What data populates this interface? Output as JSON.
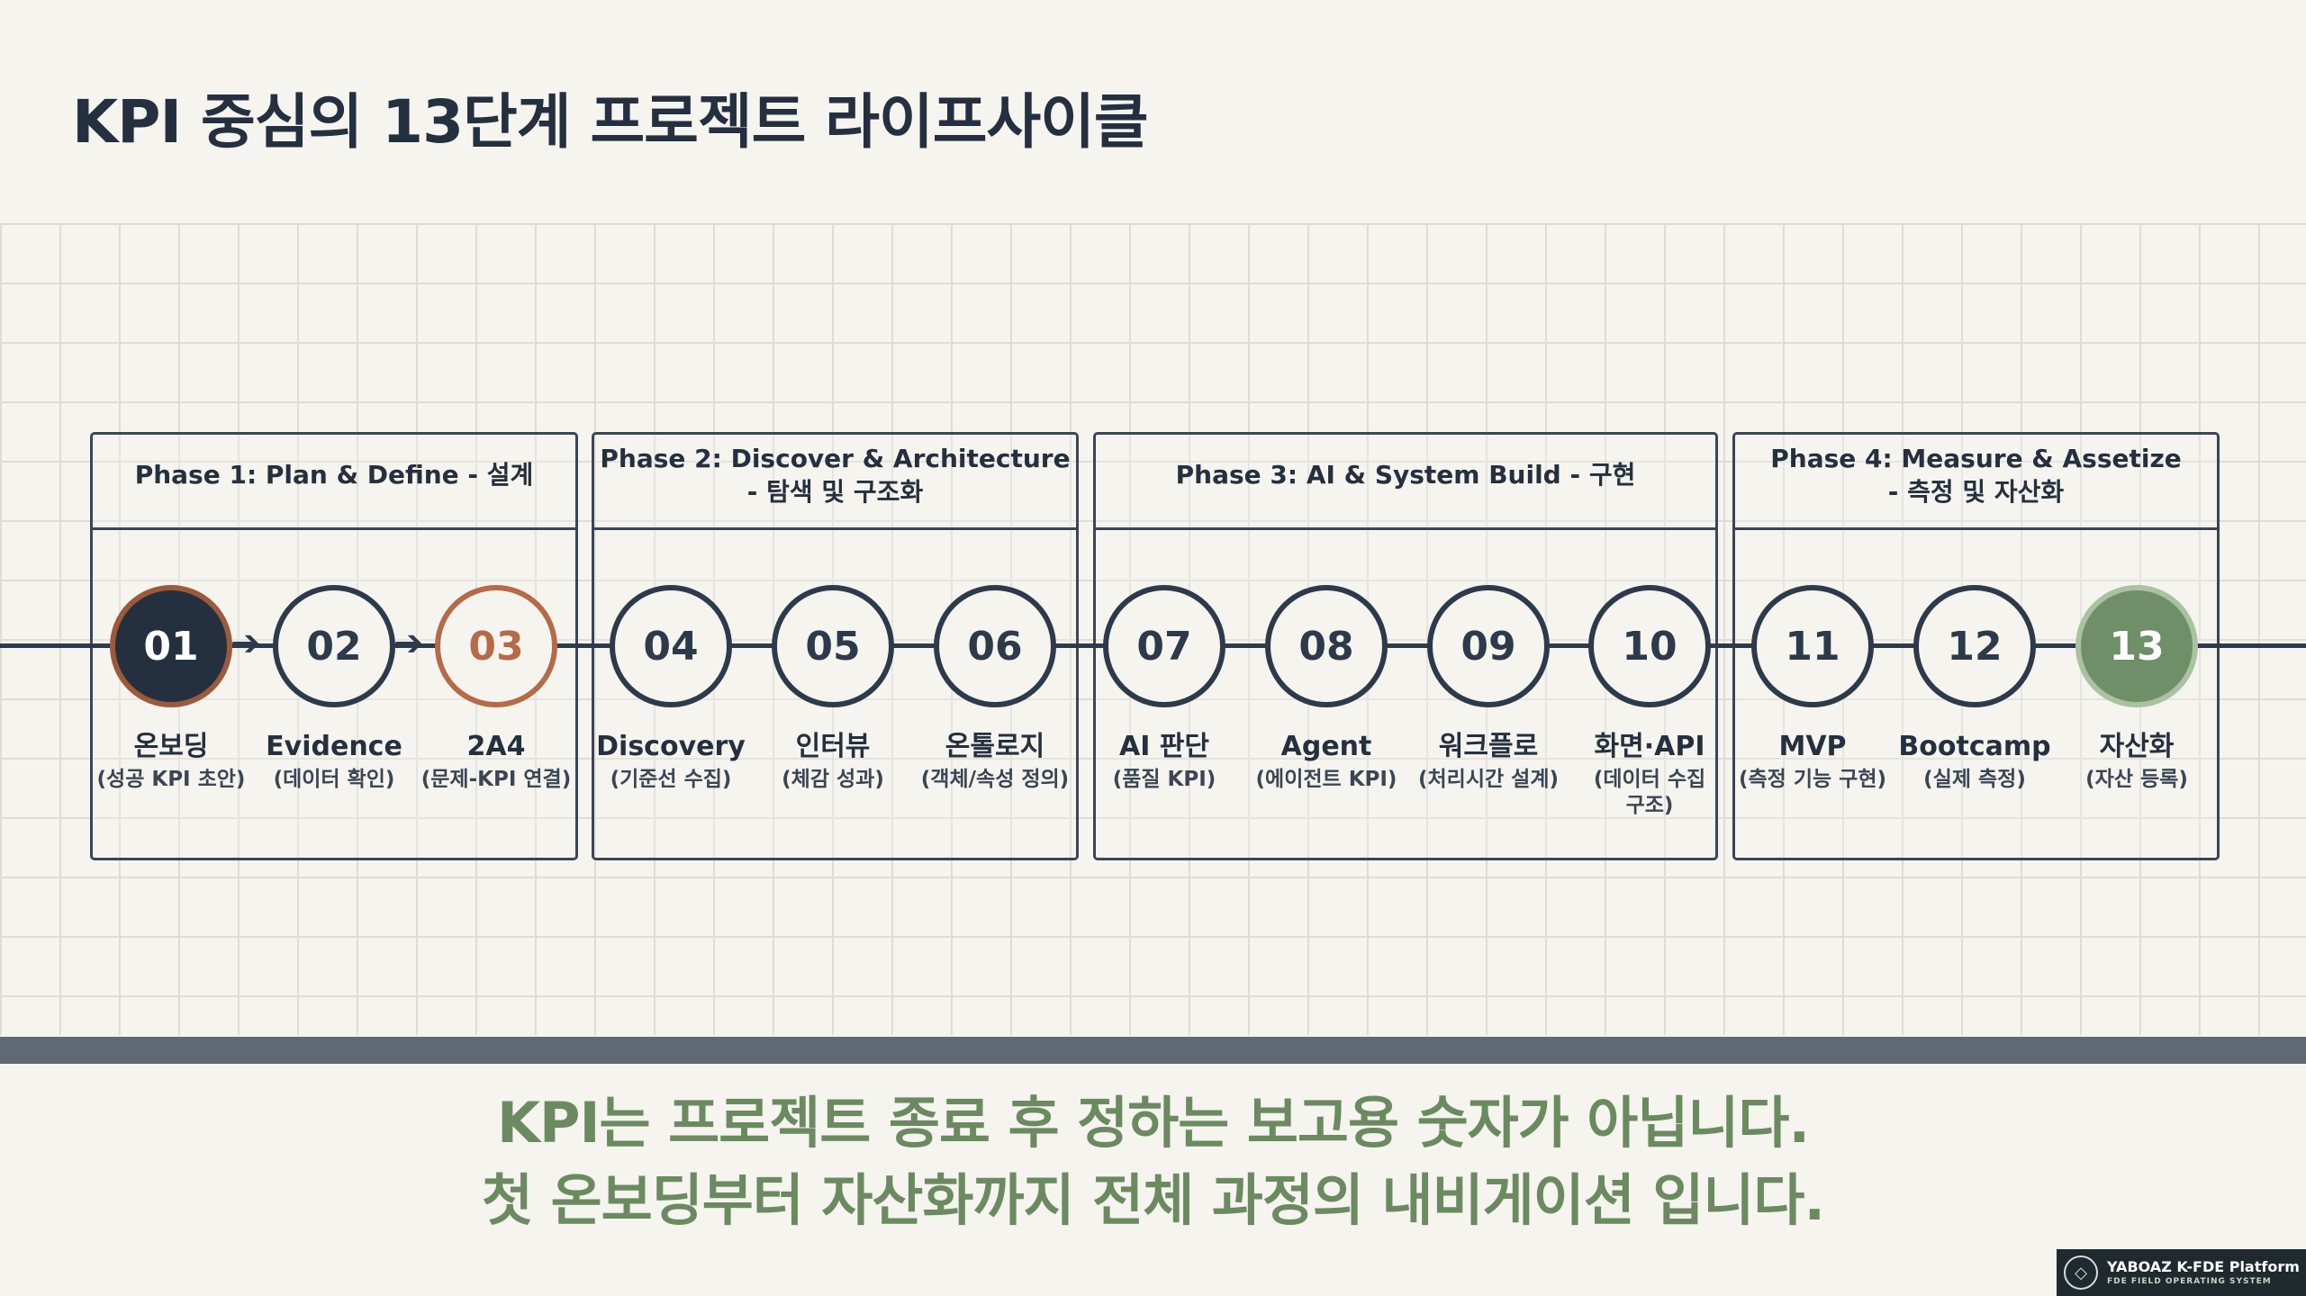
{
  "title": "KPI 중심의 13단계 프로젝트 라이프사이클",
  "phases": [
    {
      "label": "Phase 1: Plan & Define - 설계"
    },
    {
      "label": "Phase 2: Discover & Architecture\n- 탐색 및 구조화"
    },
    {
      "label": "Phase 3: AI & System Build - 구현"
    },
    {
      "label": "Phase 4: Measure & Assetize\n- 측정 및 자산화"
    }
  ],
  "steps": [
    {
      "num": "01",
      "name": "온보딩",
      "desc": "(성공 KPI 초안)"
    },
    {
      "num": "02",
      "name": "Evidence",
      "desc": "(데이터 확인)"
    },
    {
      "num": "03",
      "name": "2A4",
      "desc": "(문제-KPI 연결)"
    },
    {
      "num": "04",
      "name": "Discovery",
      "desc": "(기준선 수집)"
    },
    {
      "num": "05",
      "name": "인터뷰",
      "desc": "(체감 성과)"
    },
    {
      "num": "06",
      "name": "온톨로지",
      "desc": "(객체/속성 정의)"
    },
    {
      "num": "07",
      "name": "AI 판단",
      "desc": "(품질 KPI)"
    },
    {
      "num": "08",
      "name": "Agent",
      "desc": "(에이전트 KPI)"
    },
    {
      "num": "09",
      "name": "워크플로",
      "desc": "(처리시간 설계)"
    },
    {
      "num": "10",
      "name": "화면·API",
      "desc": "(데이터 수집\n구조)"
    },
    {
      "num": "11",
      "name": "MVP",
      "desc": "(측정 기능 구현)"
    },
    {
      "num": "12",
      "name": "Bootcamp",
      "desc": "(실제 측정)"
    },
    {
      "num": "13",
      "name": "자산화",
      "desc": "(자산 등록)"
    }
  ],
  "message": {
    "line1": "KPI는 프로젝트 종료 후 정하는 보고용 숫자가 아닙니다.",
    "line2": "첫 온보딩부터 자산화까지 전체 과정의 내비게이션 입니다."
  },
  "badge": {
    "name": "YABOAZ K-FDE Platform",
    "sub": "FDE FIELD OPERATING SYSTEM"
  },
  "colors": {
    "navy": "#24303f",
    "accent_orange": "#b56a48",
    "accent_green": "#6f8f68",
    "message_green": "#6b8a60"
  }
}
